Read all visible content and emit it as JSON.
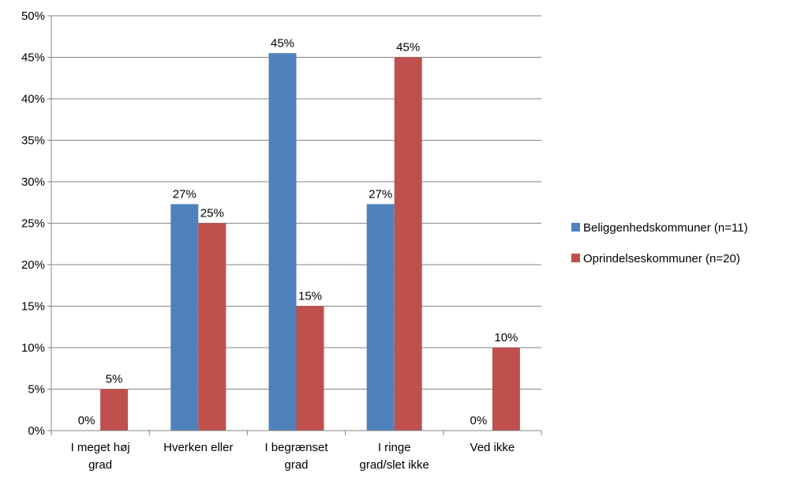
{
  "chart_data": {
    "type": "bar",
    "title": "",
    "xlabel": "",
    "ylabel": "",
    "categories": [
      [
        "I meget høj",
        "grad"
      ],
      [
        "Hverken eller"
      ],
      [
        "I begrænset",
        "grad"
      ],
      [
        "I ringe",
        "grad/slet ikke"
      ],
      [
        "Ved ikke"
      ]
    ],
    "series": [
      {
        "name": "Beliggenhedskommuner (n=11)",
        "color": "#4f81bd",
        "values": [
          0,
          27.3,
          45.5,
          27.3,
          0
        ],
        "labels": [
          "0%",
          "27%",
          "45%",
          "27%",
          "0%"
        ]
      },
      {
        "name": "Oprindelseskommuner (n=20)",
        "color": "#c0504d",
        "values": [
          5,
          25,
          15,
          45,
          10
        ],
        "labels": [
          "5%",
          "25%",
          "15%",
          "45%",
          "10%"
        ]
      }
    ],
    "ylim": [
      0,
      50
    ],
    "yticks": [
      0,
      5,
      10,
      15,
      20,
      25,
      30,
      35,
      40,
      45,
      50
    ],
    "ytick_labels": [
      "0%",
      "5%",
      "10%",
      "15%",
      "20%",
      "25%",
      "30%",
      "35%",
      "40%",
      "45%",
      "50%"
    ],
    "grid": true,
    "grid_color": "#868686",
    "legend_position": "right"
  }
}
